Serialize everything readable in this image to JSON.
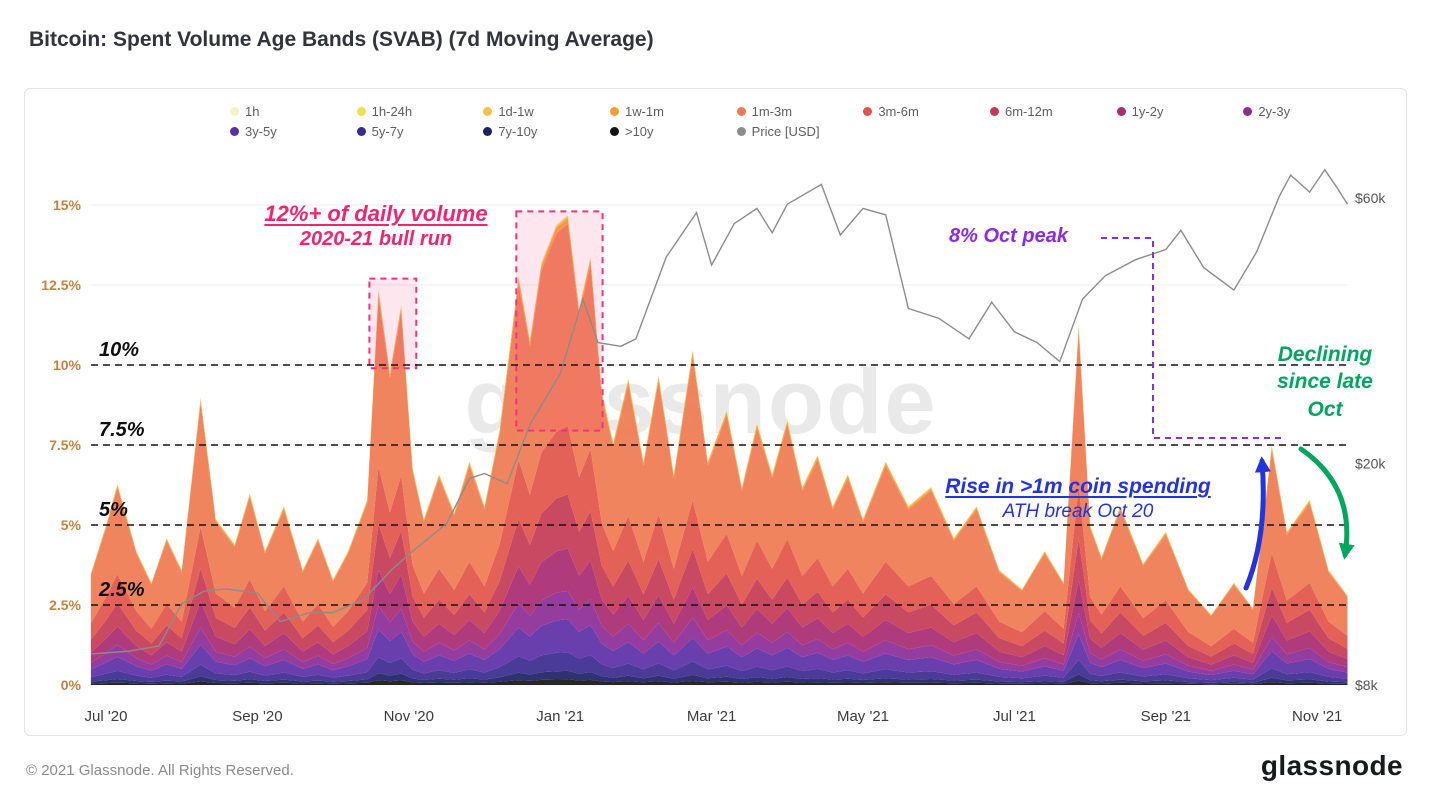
{
  "page": {
    "title": "Bitcoin: Spent Volume Age Bands (SVAB) (7d Moving Average)",
    "watermark": "glassnode",
    "footer_copyright": "© 2021 Glassnode. All Rights Reserved.",
    "footer_logo": "glassnode"
  },
  "legend": {
    "row1": [
      {
        "label": "1h",
        "color": "#f6f3bd"
      },
      {
        "label": "1h-24h",
        "color": "#f0e04c"
      },
      {
        "label": "1d-1w",
        "color": "#f6c244"
      },
      {
        "label": "1w-1m",
        "color": "#f89d32"
      },
      {
        "label": "1m-3m",
        "color": "#ef7950"
      },
      {
        "label": "3m-6m",
        "color": "#e2544a"
      },
      {
        "label": "6m-12m",
        "color": "#c43a56"
      },
      {
        "label": "1y-2y",
        "color": "#a82a71"
      },
      {
        "label": "2y-3y",
        "color": "#8c2d97"
      }
    ],
    "row2": [
      {
        "label": "3y-5y",
        "color": "#5c2ea6"
      },
      {
        "label": "5y-7y",
        "color": "#3b2a8f"
      },
      {
        "label": "7y-10y",
        "color": "#1d2064"
      },
      {
        "label": ">10y",
        "color": "#151515"
      },
      {
        "label": "Price [USD]",
        "color": "#8c8c8c"
      }
    ]
  },
  "chart_data": {
    "type": "area",
    "subtype": "stacked_age_bands_plus_price_line",
    "title": "Bitcoin: Spent Volume Age Bands (SVAB) (7d Moving Average)",
    "x_unit": "months since Jul 2020",
    "x_ticks": [
      {
        "m": 0,
        "label": "Jul '20"
      },
      {
        "m": 2,
        "label": "Sep '20"
      },
      {
        "m": 4,
        "label": "Nov '20"
      },
      {
        "m": 6,
        "label": "Jan '21"
      },
      {
        "m": 8,
        "label": "Mar '21"
      },
      {
        "m": 10,
        "label": "May '21"
      },
      {
        "m": 12,
        "label": "Jul '21"
      },
      {
        "m": 14,
        "label": "Sep '21"
      },
      {
        "m": 16,
        "label": "Nov '21"
      }
    ],
    "y_left": {
      "ticks": [
        0,
        2.5,
        5,
        7.5,
        10,
        12.5,
        15
      ],
      "tick_labels": [
        "0%",
        "2.5%",
        "5%",
        "7.5%",
        "10%",
        "12.5%",
        "15%"
      ],
      "ylim": [
        0,
        16.4
      ]
    },
    "y_right": {
      "scale": "log",
      "ticks": [
        {
          "value_usd": 60000,
          "label": "$60k"
        },
        {
          "value_usd": 20000,
          "label": "$20k"
        },
        {
          "value_usd": 8000,
          "label": "$8k"
        }
      ]
    },
    "threshold_lines": {
      "values": [
        2.5,
        5,
        7.5,
        10
      ],
      "labels": [
        "2.5%",
        "5%",
        "7.5%",
        "10%"
      ]
    },
    "x": [
      -0.2,
      0.0,
      0.15,
      0.4,
      0.6,
      0.8,
      1.0,
      1.25,
      1.45,
      1.7,
      1.9,
      2.1,
      2.35,
      2.6,
      2.8,
      3.0,
      3.2,
      3.45,
      3.6,
      3.75,
      3.9,
      4.05,
      4.2,
      4.4,
      4.6,
      4.8,
      5.0,
      5.2,
      5.45,
      5.6,
      5.75,
      5.95,
      6.1,
      6.25,
      6.4,
      6.55,
      6.7,
      6.9,
      7.1,
      7.3,
      7.5,
      7.75,
      7.95,
      8.2,
      8.4,
      8.6,
      8.8,
      9.0,
      9.2,
      9.4,
      9.6,
      9.8,
      10.0,
      10.3,
      10.6,
      10.9,
      11.2,
      11.5,
      11.8,
      12.1,
      12.4,
      12.65,
      12.85,
      13.0,
      13.15,
      13.4,
      13.7,
      14.0,
      14.3,
      14.6,
      14.9,
      15.15,
      15.4,
      15.6,
      15.9,
      16.15,
      16.4
    ],
    "total_pct": [
      3.5,
      5.0,
      6.3,
      4.2,
      3.2,
      4.6,
      3.6,
      9.0,
      5.2,
      4.4,
      6.0,
      4.2,
      5.6,
      3.6,
      4.6,
      3.3,
      4.2,
      5.8,
      12.4,
      9.8,
      11.9,
      6.8,
      5.2,
      6.6,
      5.4,
      7.0,
      5.6,
      8.0,
      12.8,
      10.8,
      13.2,
      14.4,
      14.7,
      11.8,
      13.4,
      9.2,
      7.6,
      9.6,
      7.0,
      9.7,
      6.6,
      10.5,
      7.0,
      8.6,
      6.2,
      8.2,
      6.6,
      8.3,
      6.2,
      7.2,
      5.6,
      6.6,
      5.2,
      7.0,
      5.6,
      6.2,
      4.6,
      5.6,
      3.6,
      3.0,
      4.2,
      3.2,
      11.3,
      5.0,
      4.0,
      5.6,
      3.8,
      4.8,
      3.0,
      2.2,
      3.2,
      2.4,
      7.5,
      4.8,
      5.8,
      3.6,
      2.8
    ],
    "bands_note": "band value at each x = total_pct * fraction; bands listed bottom-to-top of stack",
    "bands": [
      {
        "name": ">10y",
        "color": "#151515",
        "fraction": 0.012
      },
      {
        "name": "7y-10y",
        "color": "#1d2064",
        "fraction": 0.018
      },
      {
        "name": "5y-7y",
        "color": "#3b2a8f",
        "fraction": 0.04
      },
      {
        "name": "3y-5y",
        "color": "#5c2ea6",
        "fraction": 0.07
      },
      {
        "name": "2y-3y",
        "color": "#8c2d97",
        "fraction": 0.06
      },
      {
        "name": "1y-2y",
        "color": "#a82a71",
        "fraction": 0.09
      },
      {
        "name": "6m-12m",
        "color": "#c43a56",
        "fraction": 0.115
      },
      {
        "name": "3m-6m",
        "color": "#e2544a",
        "fraction": 0.145
      },
      {
        "name": "1m-3m",
        "color": "#ef7950",
        "fraction": 0.43
      },
      {
        "name": "1w-1m",
        "color": "#f89d32",
        "fraction": 0.012
      },
      {
        "name": "1d-1w",
        "color": "#f6c244",
        "fraction": 0.004
      },
      {
        "name": "1h-24h",
        "color": "#f0e04c",
        "fraction": 0.002
      },
      {
        "name": "1h",
        "color": "#f6f3bd",
        "fraction": 0.002
      }
    ],
    "price": {
      "name": "Price [USD]",
      "color": "#8c8c8c",
      "x": [
        -0.2,
        0.3,
        0.7,
        1.0,
        1.3,
        1.6,
        2.0,
        2.3,
        2.7,
        3.0,
        3.4,
        3.8,
        4.1,
        4.5,
        4.8,
        5.0,
        5.3,
        5.6,
        6.0,
        6.3,
        6.5,
        6.8,
        7.0,
        7.4,
        7.8,
        8.0,
        8.3,
        8.6,
        8.8,
        9.0,
        9.45,
        9.7,
        10.0,
        10.3,
        10.6,
        11.0,
        11.4,
        11.7,
        12.0,
        12.3,
        12.6,
        12.9,
        13.2,
        13.6,
        14.0,
        14.2,
        14.5,
        14.9,
        15.2,
        15.5,
        15.65,
        15.9,
        16.1,
        16.25,
        16.4
      ],
      "usd_k": [
        9.1,
        9.2,
        9.4,
        11.2,
        11.8,
        11.9,
        11.7,
        10.4,
        10.8,
        10.8,
        11.4,
        13.0,
        14.1,
        15.6,
        18.8,
        19.2,
        18.4,
        23.5,
        29.0,
        39.5,
        33.0,
        32.5,
        33.5,
        47.0,
        56.5,
        45.5,
        54.0,
        57.5,
        52.0,
        58.5,
        63.5,
        51.5,
        57.5,
        56.0,
        38.0,
        36.5,
        33.5,
        39.0,
        34.5,
        33.0,
        30.5,
        39.5,
        43.5,
        46.5,
        48.5,
        52.5,
        45.0,
        41.0,
        48.0,
        60.5,
        66.0,
        61.5,
        67.5,
        63.0,
        58.5
      ]
    },
    "highlight_boxes": [
      {
        "x0_m": 3.48,
        "x1_m": 4.1,
        "y0_pct": 9.9,
        "y1_pct": 12.7,
        "stroke": "#f5317f",
        "fill": "#f5317f",
        "fill_opacity": 0.12
      },
      {
        "x0_m": 5.42,
        "x1_m": 6.56,
        "y0_pct": 7.95,
        "y1_pct": 14.8,
        "stroke": "#f5317f",
        "fill": "#f5317f",
        "fill_opacity": 0.12
      }
    ],
    "annotations": {
      "bull_run": {
        "line1": "12%+ of daily volume",
        "line2": "2020-21 bull run",
        "color": "#f0256e"
      },
      "oct_peak": {
        "text": "8% Oct peak",
        "color": "#8b2be2"
      },
      "declining": {
        "line1": "Declining",
        "line2": "since late",
        "line3": "Oct",
        "color": "#00a55e"
      },
      "rise": {
        "line1": "Rise in >1m coin spending",
        "line2": "ATH break Oct 20",
        "color": "#2334dd"
      }
    }
  }
}
